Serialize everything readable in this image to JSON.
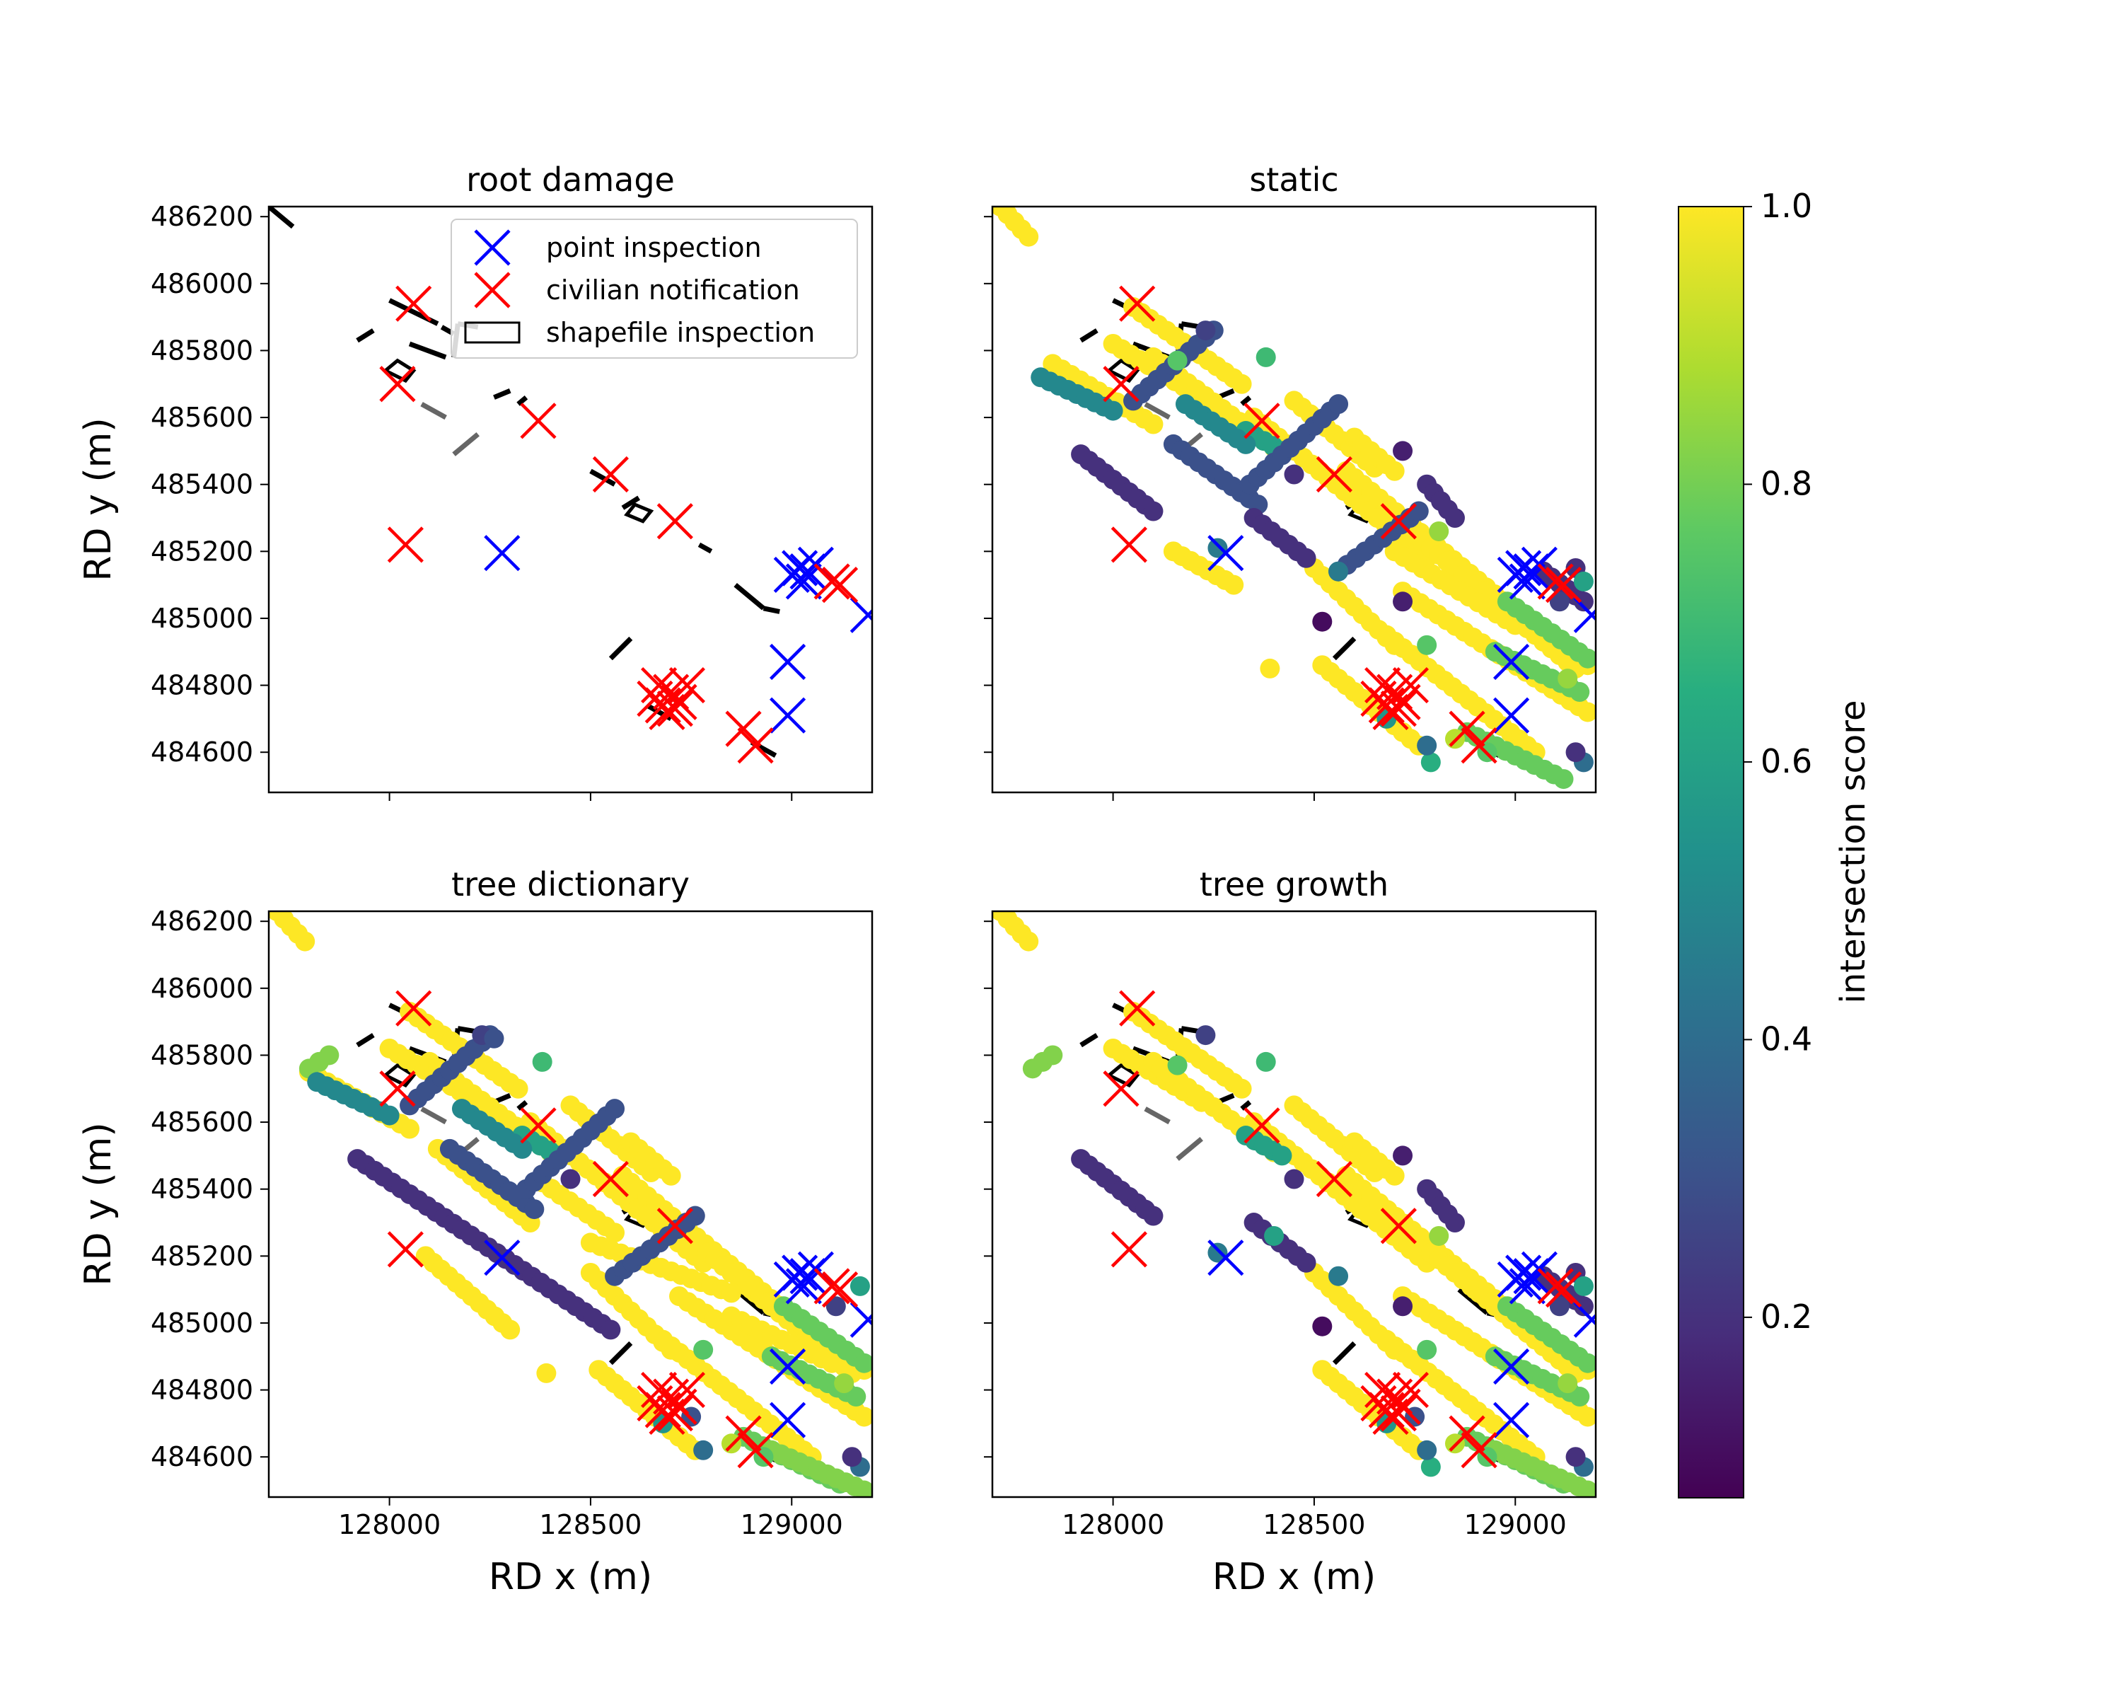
{
  "colors": {
    "point_inspection": "#0000ff",
    "civilian_notification": "#ff0000",
    "shapefile": "#000000",
    "shapefile_grey": "#666666",
    "colormap": "viridis"
  },
  "colorbar": {
    "label": "intersection score",
    "range": [
      0.07,
      1.0
    ],
    "ticks": [
      "0.2",
      "0.4",
      "0.6",
      "0.8",
      "1.0"
    ],
    "tick_values": [
      0.2,
      0.4,
      0.6,
      0.8,
      1.0
    ]
  },
  "legend": {
    "placement": "upper right of first panel",
    "items": [
      {
        "label": "point inspection",
        "marker": "x",
        "color": "#0000ff"
      },
      {
        "label": "civilian notification",
        "marker": "x",
        "color": "#ff0000"
      },
      {
        "label": "shapefile inspection",
        "marker": "rect",
        "color": "#000000"
      }
    ]
  },
  "chart_data": {
    "type": "scatter",
    "xlabel": "RD x (m)",
    "ylabel": "RD y (m)",
    "xlim": [
      127700,
      129200
    ],
    "ylim": [
      484480,
      486230
    ],
    "x_ticks": [
      128000,
      128500,
      129000
    ],
    "x_tick_labels": [
      "128000",
      "128500",
      "129000"
    ],
    "y_ticks": [
      484600,
      484800,
      485000,
      485200,
      485400,
      485600,
      485800,
      486000,
      486200
    ],
    "y_tick_labels": [
      "484600",
      "484800",
      "485000",
      "485200",
      "485400",
      "485600",
      "485800",
      "486000",
      "486200"
    ],
    "panels": [
      {
        "title": "root damage",
        "show_scores": false,
        "show_legend": true,
        "show_xticklabels": false,
        "show_yticklabels": true
      },
      {
        "title": "static",
        "show_scores": true,
        "show_legend": false,
        "show_xticklabels": false,
        "show_yticklabels": false
      },
      {
        "title": "tree dictionary",
        "show_scores": true,
        "show_legend": false,
        "show_xticklabels": true,
        "show_yticklabels": true
      },
      {
        "title": "tree growth",
        "show_scores": true,
        "show_legend": false,
        "show_xticklabels": true,
        "show_yticklabels": false
      }
    ],
    "point_inspection": [
      [
        128280,
        485195
      ],
      [
        129000,
        485130
      ],
      [
        129020,
        485150
      ],
      [
        129040,
        485140
      ],
      [
        129060,
        485160
      ],
      [
        129030,
        485110
      ],
      [
        129190,
        485010
      ],
      [
        128990,
        484870
      ],
      [
        128990,
        484710
      ]
    ],
    "civilian_notification": [
      [
        128060,
        485940
      ],
      [
        128020,
        485700
      ],
      [
        128040,
        485220
      ],
      [
        128370,
        485590
      ],
      [
        128550,
        485430
      ],
      [
        128710,
        485290
      ],
      [
        128660,
        484760
      ],
      [
        128680,
        484740
      ],
      [
        128700,
        484780
      ],
      [
        128720,
        484750
      ],
      [
        128690,
        484720
      ],
      [
        128740,
        484800
      ],
      [
        128670,
        484800
      ],
      [
        128710,
        484730
      ],
      [
        128880,
        484670
      ],
      [
        128910,
        484620
      ],
      [
        129100,
        485110
      ],
      [
        129120,
        485100
      ]
    ],
    "shapefile_segments": [
      [
        [
          127700,
          486230
        ],
        [
          127760,
          486170
        ]
      ],
      [
        [
          128000,
          485950
        ],
        [
          128120,
          485880
        ]
      ],
      [
        [
          128050,
          485820
        ],
        [
          128140,
          485780
        ]
      ],
      [
        [
          128130,
          485870
        ],
        [
          128160,
          485850
        ]
      ],
      [
        [
          127920,
          485830
        ],
        [
          127960,
          485860
        ]
      ],
      [
        [
          128160,
          485780
        ],
        [
          128170,
          485880
        ]
      ],
      [
        [
          128170,
          485880
        ],
        [
          128220,
          485870
        ]
      ],
      [
        [
          128260,
          485660
        ],
        [
          128300,
          485680
        ]
      ],
      [
        [
          128320,
          485640
        ],
        [
          128340,
          485660
        ]
      ],
      [
        [
          128500,
          485440
        ],
        [
          128560,
          485400
        ]
      ],
      [
        [
          128580,
          485330
        ],
        [
          128620,
          485360
        ]
      ],
      [
        [
          128770,
          485220
        ],
        [
          128800,
          485200
        ]
      ],
      [
        [
          128860,
          485100
        ],
        [
          128930,
          485030
        ]
      ],
      [
        [
          128930,
          485030
        ],
        [
          128970,
          485020
        ]
      ],
      [
        [
          128550,
          484880
        ],
        [
          128600,
          484940
        ]
      ],
      [
        [
          128640,
          484740
        ],
        [
          128700,
          484700
        ]
      ],
      [
        [
          128900,
          484630
        ],
        [
          128960,
          484590
        ]
      ]
    ],
    "shapefile_grey_segments": [
      [
        [
          128080,
          485640
        ],
        [
          128140,
          485600
        ]
      ],
      [
        [
          128160,
          485490
        ],
        [
          128220,
          485550
        ]
      ]
    ],
    "shapefile_polygons": [
      [
        [
          127990,
          485740
        ],
        [
          128040,
          485710
        ],
        [
          128060,
          485740
        ],
        [
          128020,
          485770
        ]
      ],
      [
        [
          128590,
          485310
        ],
        [
          128630,
          485290
        ],
        [
          128650,
          485320
        ],
        [
          128610,
          485340
        ]
      ]
    ],
    "score_groups": [
      {
        "score": 1.0,
        "panels": [
          1,
          2,
          3
        ],
        "segments": [
          [
            [
              127720,
              486230
            ],
            [
              127790,
              486140
            ]
          ],
          [
            [
              128050,
              485930
            ],
            [
              128320,
              485700
            ]
          ],
          [
            [
              128000,
              485820
            ],
            [
              128220,
              485660
            ]
          ],
          [
            [
              128100,
              485780
            ],
            [
              128400,
              485510
            ]
          ],
          [
            [
              128350,
              485600
            ],
            [
              128780,
              485180
            ]
          ],
          [
            [
              128580,
              485440
            ],
            [
              129050,
              484970
            ]
          ],
          [
            [
              128720,
              485080
            ],
            [
              129180,
              484720
            ]
          ],
          [
            [
              128680,
              484950
            ],
            [
              129050,
              484600
            ]
          ],
          [
            [
              128500,
              485150
            ],
            [
              128700,
              484920
            ]
          ],
          [
            [
              128750,
              485250
            ],
            [
              129150,
              484850
            ]
          ],
          [
            [
              128450,
              485650
            ],
            [
              128650,
              485450
            ]
          ],
          [
            [
              128520,
              484860
            ],
            [
              128760,
              484620
            ]
          ],
          [
            [
              128900,
              485100
            ],
            [
              129180,
              484860
            ]
          ],
          [
            [
              128600,
              485540
            ],
            [
              128700,
              485440
            ]
          ]
        ]
      },
      {
        "score": 1.0,
        "panels": [
          2
        ],
        "segments": [
          [
            [
              127800,
              485750
            ],
            [
              128050,
              485580
            ]
          ],
          [
            [
              128090,
              485200
            ],
            [
              128300,
              484980
            ]
          ],
          [
            [
              128120,
              485520
            ],
            [
              128350,
              485300
            ]
          ],
          [
            [
              128500,
              485240
            ],
            [
              128850,
              485090
            ]
          ],
          [
            [
              128850,
              485020
            ],
            [
              129100,
              484880
            ]
          ],
          [
            [
              128380,
              485420
            ],
            [
              128560,
              485270
            ]
          ]
        ]
      },
      {
        "score": 1.0,
        "panels": [
          1
        ],
        "segments": [
          [
            [
              127850,
              485760
            ],
            [
              128100,
              485580
            ]
          ],
          [
            [
              128150,
              485200
            ],
            [
              128300,
              485100
            ]
          ],
          [
            [
              128700,
              485200
            ],
            [
              129000,
              484980
            ]
          ]
        ]
      },
      {
        "score": 0.78,
        "panels": [
          1,
          2,
          3
        ],
        "segments": [
          [
            [
              128980,
              485050
            ],
            [
              129180,
              484880
            ]
          ],
          [
            [
              128880,
              484660
            ],
            [
              129120,
              484520
            ]
          ],
          [
            [
              128950,
              484900
            ],
            [
              129160,
              484780
            ]
          ]
        ]
      },
      {
        "score": 0.82,
        "panels": [
          2,
          3
        ],
        "segments": [
          [
            [
              127800,
              485760
            ],
            [
              127850,
              485800
            ]
          ],
          [
            [
              128950,
              484620
            ],
            [
              129180,
              484500
            ]
          ]
        ]
      },
      {
        "score": 0.6,
        "panels": [
          1,
          2,
          3
        ],
        "segments": [
          [
            [
              128330,
              485560
            ],
            [
              128420,
              485500
            ]
          ]
        ]
      },
      {
        "score": 0.5,
        "panels": [
          1,
          2
        ],
        "segments": [
          [
            [
              127820,
              485720
            ],
            [
              128000,
              485620
            ]
          ],
          [
            [
              128180,
              485640
            ],
            [
              128330,
              485520
            ]
          ]
        ]
      },
      {
        "score": 0.3,
        "panels": [
          1,
          2
        ],
        "segments": [
          [
            [
              128050,
              485650
            ],
            [
              128250,
              485860
            ]
          ],
          [
            [
              128150,
              485520
            ],
            [
              128360,
              485340
            ]
          ],
          [
            [
              128560,
              485140
            ],
            [
              128760,
              485320
            ]
          ],
          [
            [
              128340,
              485400
            ],
            [
              128560,
              485640
            ]
          ]
        ]
      },
      {
        "score": 0.2,
        "panels": [
          2
        ],
        "segments": [
          [
            [
              127920,
              485490
            ],
            [
              128550,
              484980
            ]
          ]
        ]
      },
      {
        "score": 0.2,
        "panels": [
          1,
          3
        ],
        "segments": [
          [
            [
              127920,
              485490
            ],
            [
              128100,
              485320
            ]
          ],
          [
            [
              128350,
              485300
            ],
            [
              128480,
              485180
            ]
          ],
          [
            [
              128780,
              485400
            ],
            [
              128850,
              485300
            ]
          ],
          [
            [
              129070,
              485140
            ],
            [
              129170,
              485050
            ]
          ]
        ]
      }
    ],
    "score_points": [
      {
        "x": 128230,
        "y": 485860,
        "score": 0.25,
        "panels": [
          1,
          2,
          3
        ]
      },
      {
        "x": 128520,
        "y": 484990,
        "score": 0.1,
        "panels": [
          1,
          3
        ]
      },
      {
        "x": 128720,
        "y": 485500,
        "score": 0.15,
        "panels": [
          1,
          3
        ]
      },
      {
        "x": 128380,
        "y": 485780,
        "score": 0.7,
        "panels": [
          1,
          2,
          3
        ]
      },
      {
        "x": 128720,
        "y": 485050,
        "score": 0.15,
        "panels": [
          1,
          3
        ]
      },
      {
        "x": 128810,
        "y": 485260,
        "score": 0.85,
        "panels": [
          1,
          3
        ]
      },
      {
        "x": 128790,
        "y": 484570,
        "score": 0.65,
        "panels": [
          1,
          3
        ]
      },
      {
        "x": 128780,
        "y": 484920,
        "score": 0.75,
        "panels": [
          1,
          2,
          3
        ]
      },
      {
        "x": 128850,
        "y": 484640,
        "score": 0.9,
        "panels": [
          1,
          2,
          3
        ]
      },
      {
        "x": 128260,
        "y": 485210,
        "score": 0.45,
        "panels": [
          1,
          3
        ]
      },
      {
        "x": 129170,
        "y": 484570,
        "score": 0.4,
        "panels": [
          1,
          2,
          3
        ]
      },
      {
        "x": 129130,
        "y": 484820,
        "score": 0.85,
        "panels": [
          1,
          2,
          3
        ]
      },
      {
        "x": 129150,
        "y": 484600,
        "score": 0.2,
        "panels": [
          1,
          2,
          3
        ]
      },
      {
        "x": 129110,
        "y": 485050,
        "score": 0.25,
        "panels": [
          1,
          2,
          3
        ]
      },
      {
        "x": 129150,
        "y": 485150,
        "score": 0.2,
        "panels": [
          1,
          3
        ]
      },
      {
        "x": 129170,
        "y": 485110,
        "score": 0.6,
        "panels": [
          1,
          2,
          3
        ]
      },
      {
        "x": 128680,
        "y": 484700,
        "score": 0.55,
        "panels": [
          1,
          2,
          3
        ]
      },
      {
        "x": 128750,
        "y": 484720,
        "score": 0.3,
        "panels": [
          2,
          3
        ]
      },
      {
        "x": 128780,
        "y": 484620,
        "score": 0.4,
        "panels": [
          1,
          2,
          3
        ]
      },
      {
        "x": 128930,
        "y": 484600,
        "score": 0.75,
        "panels": [
          1,
          2,
          3
        ]
      },
      {
        "x": 128390,
        "y": 484850,
        "score": 1.0,
        "panels": [
          1,
          2
        ]
      },
      {
        "x": 128450,
        "y": 485430,
        "score": 0.2,
        "panels": [
          1,
          2,
          3
        ]
      },
      {
        "x": 128560,
        "y": 485140,
        "score": 0.45,
        "panels": [
          1,
          3
        ]
      },
      {
        "x": 128260,
        "y": 485850,
        "score": 0.3,
        "panels": [
          2
        ]
      },
      {
        "x": 128160,
        "y": 485770,
        "score": 0.75,
        "panels": [
          1,
          3
        ]
      },
      {
        "x": 128400,
        "y": 485260,
        "score": 0.6,
        "panels": [
          3
        ]
      }
    ]
  }
}
